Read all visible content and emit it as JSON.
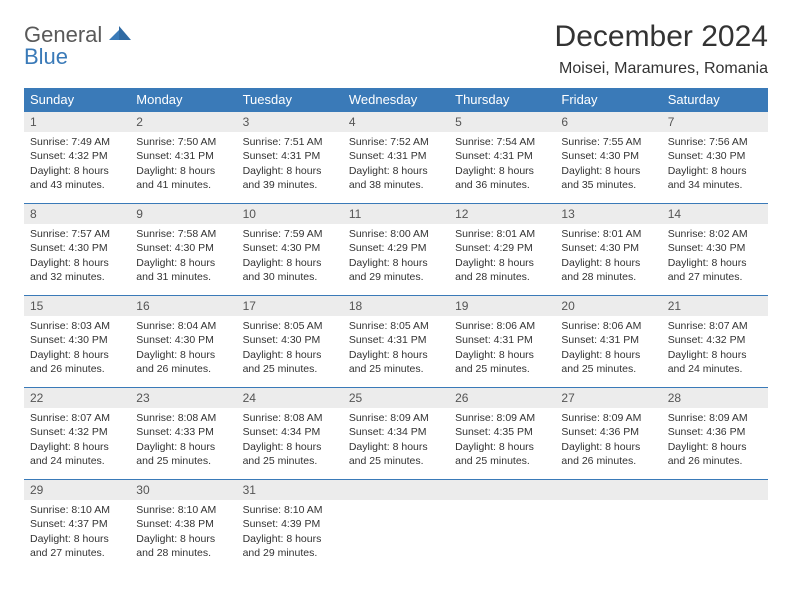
{
  "logo": {
    "top": "General",
    "bottom": "Blue"
  },
  "title": "December 2024",
  "location": "Moisei, Maramures, Romania",
  "colors": {
    "header_bg": "#3a7ab8",
    "header_text": "#ffffff",
    "daynum_bg": "#ececec",
    "cell_border": "#3a7ab8",
    "body_text": "#333333"
  },
  "weekday_labels": [
    "Sunday",
    "Monday",
    "Tuesday",
    "Wednesday",
    "Thursday",
    "Friday",
    "Saturday"
  ],
  "weeks": [
    [
      {
        "n": "1",
        "sr": "Sunrise: 7:49 AM",
        "ss": "Sunset: 4:32 PM",
        "d1": "Daylight: 8 hours",
        "d2": "and 43 minutes."
      },
      {
        "n": "2",
        "sr": "Sunrise: 7:50 AM",
        "ss": "Sunset: 4:31 PM",
        "d1": "Daylight: 8 hours",
        "d2": "and 41 minutes."
      },
      {
        "n": "3",
        "sr": "Sunrise: 7:51 AM",
        "ss": "Sunset: 4:31 PM",
        "d1": "Daylight: 8 hours",
        "d2": "and 39 minutes."
      },
      {
        "n": "4",
        "sr": "Sunrise: 7:52 AM",
        "ss": "Sunset: 4:31 PM",
        "d1": "Daylight: 8 hours",
        "d2": "and 38 minutes."
      },
      {
        "n": "5",
        "sr": "Sunrise: 7:54 AM",
        "ss": "Sunset: 4:31 PM",
        "d1": "Daylight: 8 hours",
        "d2": "and 36 minutes."
      },
      {
        "n": "6",
        "sr": "Sunrise: 7:55 AM",
        "ss": "Sunset: 4:30 PM",
        "d1": "Daylight: 8 hours",
        "d2": "and 35 minutes."
      },
      {
        "n": "7",
        "sr": "Sunrise: 7:56 AM",
        "ss": "Sunset: 4:30 PM",
        "d1": "Daylight: 8 hours",
        "d2": "and 34 minutes."
      }
    ],
    [
      {
        "n": "8",
        "sr": "Sunrise: 7:57 AM",
        "ss": "Sunset: 4:30 PM",
        "d1": "Daylight: 8 hours",
        "d2": "and 32 minutes."
      },
      {
        "n": "9",
        "sr": "Sunrise: 7:58 AM",
        "ss": "Sunset: 4:30 PM",
        "d1": "Daylight: 8 hours",
        "d2": "and 31 minutes."
      },
      {
        "n": "10",
        "sr": "Sunrise: 7:59 AM",
        "ss": "Sunset: 4:30 PM",
        "d1": "Daylight: 8 hours",
        "d2": "and 30 minutes."
      },
      {
        "n": "11",
        "sr": "Sunrise: 8:00 AM",
        "ss": "Sunset: 4:29 PM",
        "d1": "Daylight: 8 hours",
        "d2": "and 29 minutes."
      },
      {
        "n": "12",
        "sr": "Sunrise: 8:01 AM",
        "ss": "Sunset: 4:29 PM",
        "d1": "Daylight: 8 hours",
        "d2": "and 28 minutes."
      },
      {
        "n": "13",
        "sr": "Sunrise: 8:01 AM",
        "ss": "Sunset: 4:30 PM",
        "d1": "Daylight: 8 hours",
        "d2": "and 28 minutes."
      },
      {
        "n": "14",
        "sr": "Sunrise: 8:02 AM",
        "ss": "Sunset: 4:30 PM",
        "d1": "Daylight: 8 hours",
        "d2": "and 27 minutes."
      }
    ],
    [
      {
        "n": "15",
        "sr": "Sunrise: 8:03 AM",
        "ss": "Sunset: 4:30 PM",
        "d1": "Daylight: 8 hours",
        "d2": "and 26 minutes."
      },
      {
        "n": "16",
        "sr": "Sunrise: 8:04 AM",
        "ss": "Sunset: 4:30 PM",
        "d1": "Daylight: 8 hours",
        "d2": "and 26 minutes."
      },
      {
        "n": "17",
        "sr": "Sunrise: 8:05 AM",
        "ss": "Sunset: 4:30 PM",
        "d1": "Daylight: 8 hours",
        "d2": "and 25 minutes."
      },
      {
        "n": "18",
        "sr": "Sunrise: 8:05 AM",
        "ss": "Sunset: 4:31 PM",
        "d1": "Daylight: 8 hours",
        "d2": "and 25 minutes."
      },
      {
        "n": "19",
        "sr": "Sunrise: 8:06 AM",
        "ss": "Sunset: 4:31 PM",
        "d1": "Daylight: 8 hours",
        "d2": "and 25 minutes."
      },
      {
        "n": "20",
        "sr": "Sunrise: 8:06 AM",
        "ss": "Sunset: 4:31 PM",
        "d1": "Daylight: 8 hours",
        "d2": "and 25 minutes."
      },
      {
        "n": "21",
        "sr": "Sunrise: 8:07 AM",
        "ss": "Sunset: 4:32 PM",
        "d1": "Daylight: 8 hours",
        "d2": "and 24 minutes."
      }
    ],
    [
      {
        "n": "22",
        "sr": "Sunrise: 8:07 AM",
        "ss": "Sunset: 4:32 PM",
        "d1": "Daylight: 8 hours",
        "d2": "and 24 minutes."
      },
      {
        "n": "23",
        "sr": "Sunrise: 8:08 AM",
        "ss": "Sunset: 4:33 PM",
        "d1": "Daylight: 8 hours",
        "d2": "and 25 minutes."
      },
      {
        "n": "24",
        "sr": "Sunrise: 8:08 AM",
        "ss": "Sunset: 4:34 PM",
        "d1": "Daylight: 8 hours",
        "d2": "and 25 minutes."
      },
      {
        "n": "25",
        "sr": "Sunrise: 8:09 AM",
        "ss": "Sunset: 4:34 PM",
        "d1": "Daylight: 8 hours",
        "d2": "and 25 minutes."
      },
      {
        "n": "26",
        "sr": "Sunrise: 8:09 AM",
        "ss": "Sunset: 4:35 PM",
        "d1": "Daylight: 8 hours",
        "d2": "and 25 minutes."
      },
      {
        "n": "27",
        "sr": "Sunrise: 8:09 AM",
        "ss": "Sunset: 4:36 PM",
        "d1": "Daylight: 8 hours",
        "d2": "and 26 minutes."
      },
      {
        "n": "28",
        "sr": "Sunrise: 8:09 AM",
        "ss": "Sunset: 4:36 PM",
        "d1": "Daylight: 8 hours",
        "d2": "and 26 minutes."
      }
    ],
    [
      {
        "n": "29",
        "sr": "Sunrise: 8:10 AM",
        "ss": "Sunset: 4:37 PM",
        "d1": "Daylight: 8 hours",
        "d2": "and 27 minutes."
      },
      {
        "n": "30",
        "sr": "Sunrise: 8:10 AM",
        "ss": "Sunset: 4:38 PM",
        "d1": "Daylight: 8 hours",
        "d2": "and 28 minutes."
      },
      {
        "n": "31",
        "sr": "Sunrise: 8:10 AM",
        "ss": "Sunset: 4:39 PM",
        "d1": "Daylight: 8 hours",
        "d2": "and 29 minutes."
      },
      {
        "n": "",
        "sr": "",
        "ss": "",
        "d1": "",
        "d2": ""
      },
      {
        "n": "",
        "sr": "",
        "ss": "",
        "d1": "",
        "d2": ""
      },
      {
        "n": "",
        "sr": "",
        "ss": "",
        "d1": "",
        "d2": ""
      },
      {
        "n": "",
        "sr": "",
        "ss": "",
        "d1": "",
        "d2": ""
      }
    ]
  ]
}
